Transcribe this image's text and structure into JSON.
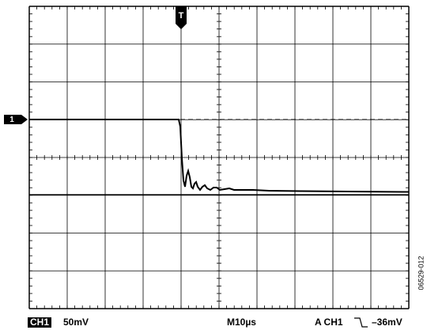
{
  "screen": {
    "trigger_marker": "T",
    "channel_marker": "1",
    "channel": "CH1",
    "volts_per_div": "50mV",
    "time_per_div": "M10µs",
    "trigger_source": "A  CH1",
    "trigger_level": "–36mV",
    "figure_id": "06529-012"
  }
}
